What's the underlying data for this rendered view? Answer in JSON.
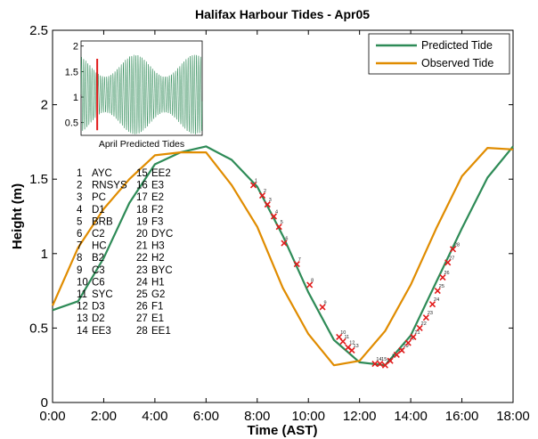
{
  "chart_data": {
    "type": "line",
    "title": "Halifax Harbour Tides - Apr05",
    "xlabel": "Time (AST)",
    "ylabel": "Height (m)",
    "xlim": [
      0,
      18
    ],
    "ylim": [
      0,
      2.5
    ],
    "x_ticks": [
      "0:00",
      "2:00",
      "4:00",
      "6:00",
      "8:00",
      "10:00",
      "12:00",
      "14:00",
      "16:00",
      "18:00"
    ],
    "y_ticks": [
      "0",
      "0.5",
      "1",
      "1.5",
      "2",
      "2.5"
    ],
    "grid": false,
    "legend_position": "top-right",
    "series": [
      {
        "name": "Predicted Tide",
        "color": "#2e8b57",
        "x": [
          0,
          1,
          2,
          3,
          4,
          5,
          6,
          7,
          8,
          9,
          10,
          11,
          12,
          13,
          14,
          15,
          16,
          17,
          18
        ],
        "y": [
          0.62,
          0.68,
          0.97,
          1.34,
          1.6,
          1.68,
          1.72,
          1.63,
          1.45,
          1.12,
          0.74,
          0.42,
          0.27,
          0.25,
          0.45,
          0.81,
          1.17,
          1.51,
          1.72
        ]
      },
      {
        "name": "Observed Tide",
        "color": "#e08c00",
        "x": [
          0,
          1,
          2,
          3,
          4,
          5,
          6,
          7,
          8,
          9,
          10,
          11,
          12,
          13,
          14,
          15,
          16,
          17,
          18
        ],
        "y": [
          0.65,
          1.04,
          1.3,
          1.5,
          1.66,
          1.68,
          1.68,
          1.46,
          1.18,
          0.77,
          0.46,
          0.25,
          0.28,
          0.48,
          0.79,
          1.17,
          1.52,
          1.71,
          1.7
        ]
      }
    ],
    "sample_markers": {
      "color": "#e21b1b",
      "points": [
        {
          "label": "1",
          "x": 7.85,
          "y": 1.46
        },
        {
          "label": "2",
          "x": 8.2,
          "y": 1.39
        },
        {
          "label": "3",
          "x": 8.4,
          "y": 1.33
        },
        {
          "label": "4",
          "x": 8.65,
          "y": 1.25
        },
        {
          "label": "5",
          "x": 8.85,
          "y": 1.18
        },
        {
          "label": "6",
          "x": 9.05,
          "y": 1.07
        },
        {
          "label": "7",
          "x": 9.55,
          "y": 0.93
        },
        {
          "label": "8",
          "x": 10.05,
          "y": 0.79
        },
        {
          "label": "9",
          "x": 10.55,
          "y": 0.64
        },
        {
          "label": "10",
          "x": 11.2,
          "y": 0.44
        },
        {
          "label": "11",
          "x": 11.35,
          "y": 0.41
        },
        {
          "label": "12",
          "x": 11.55,
          "y": 0.37
        },
        {
          "label": "13",
          "x": 11.7,
          "y": 0.35
        },
        {
          "label": "14",
          "x": 12.6,
          "y": 0.26
        },
        {
          "label": "15",
          "x": 12.8,
          "y": 0.26
        },
        {
          "label": "16",
          "x": 13.0,
          "y": 0.25
        },
        {
          "label": "17",
          "x": 13.2,
          "y": 0.28
        },
        {
          "label": "18",
          "x": 13.45,
          "y": 0.32
        },
        {
          "label": "19",
          "x": 13.65,
          "y": 0.35
        },
        {
          "label": "20",
          "x": 13.9,
          "y": 0.4
        },
        {
          "label": "21",
          "x": 14.1,
          "y": 0.44
        },
        {
          "label": "22",
          "x": 14.35,
          "y": 0.5
        },
        {
          "label": "23",
          "x": 14.6,
          "y": 0.57
        },
        {
          "label": "24",
          "x": 14.85,
          "y": 0.66
        },
        {
          "label": "25",
          "x": 15.05,
          "y": 0.75
        },
        {
          "label": "26",
          "x": 15.25,
          "y": 0.84
        },
        {
          "label": "27",
          "x": 15.45,
          "y": 0.94
        },
        {
          "label": "28",
          "x": 15.65,
          "y": 1.03
        }
      ]
    },
    "station_key": [
      {
        "number": "1",
        "code": "AYC"
      },
      {
        "number": "2",
        "code": "RNSYS"
      },
      {
        "number": "3",
        "code": "PC"
      },
      {
        "number": "4",
        "code": "D1"
      },
      {
        "number": "5",
        "code": "BRB"
      },
      {
        "number": "6",
        "code": "C2"
      },
      {
        "number": "7",
        "code": "HC"
      },
      {
        "number": "8",
        "code": "B2"
      },
      {
        "number": "9",
        "code": "C3"
      },
      {
        "number": "10",
        "code": "C6"
      },
      {
        "number": "11",
        "code": "SYC"
      },
      {
        "number": "12",
        "code": "D3"
      },
      {
        "number": "13",
        "code": "D2"
      },
      {
        "number": "14",
        "code": "EE3"
      },
      {
        "number": "15",
        "code": "EE2"
      },
      {
        "number": "16",
        "code": "E3"
      },
      {
        "number": "17",
        "code": "E2"
      },
      {
        "number": "18",
        "code": "F2"
      },
      {
        "number": "19",
        "code": "F3"
      },
      {
        "number": "20",
        "code": "DYC"
      },
      {
        "number": "21",
        "code": "H3"
      },
      {
        "number": "22",
        "code": "H2"
      },
      {
        "number": "23",
        "code": "BYC"
      },
      {
        "number": "24",
        "code": "H1"
      },
      {
        "number": "25",
        "code": "G2"
      },
      {
        "number": "26",
        "code": "F1"
      },
      {
        "number": "27",
        "code": "E1"
      },
      {
        "number": "28",
        "code": "EE1"
      }
    ],
    "inset": {
      "type": "line",
      "caption": "April Predicted Tides",
      "ylim": [
        0.25,
        2.1
      ],
      "y_ticks": [
        "2",
        "1.5",
        "1",
        "0.5"
      ],
      "line_color": "#2e8b57",
      "highlight_color": "#e21b1b",
      "days": 30,
      "mean": 1.05,
      "period_hours": 12.42,
      "envelope": {
        "min_amplitude": 0.35,
        "max_amplitude": 0.78
      },
      "highlight_day": 5
    }
  }
}
